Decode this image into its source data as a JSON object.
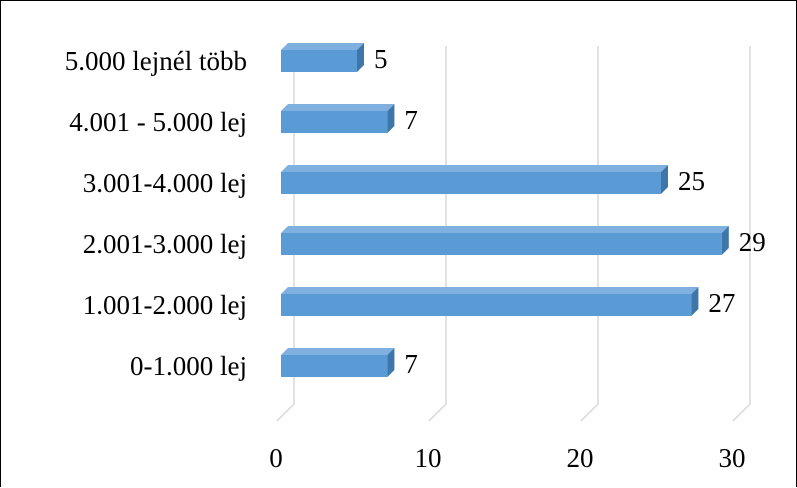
{
  "chart_data": {
    "type": "bar",
    "orientation": "horizontal",
    "categories": [
      "0-1.000 lej",
      "1.001-2.000 lej",
      "2.001-3.000 lej",
      "3.001-4.000 lej",
      "4.001 - 5.000 lej",
      "5.000 lejnél több"
    ],
    "values": [
      7,
      27,
      29,
      25,
      7,
      5
    ],
    "data_labels": [
      "7",
      "27",
      "29",
      "25",
      "7",
      "5"
    ],
    "xticks": [
      0,
      10,
      20,
      30
    ],
    "xtick_labels": [
      "0",
      "10",
      "20",
      "30"
    ],
    "xlim": [
      0,
      30
    ],
    "title": "",
    "xlabel": "",
    "ylabel": "",
    "grid": true,
    "legend": false,
    "style": "3d-bar",
    "colors": {
      "bar_front": "#5b9bd5",
      "bar_top": "#7fb0df",
      "bar_side": "#3f76aa",
      "grid": "#d9d9d9",
      "text": "#000000"
    }
  }
}
